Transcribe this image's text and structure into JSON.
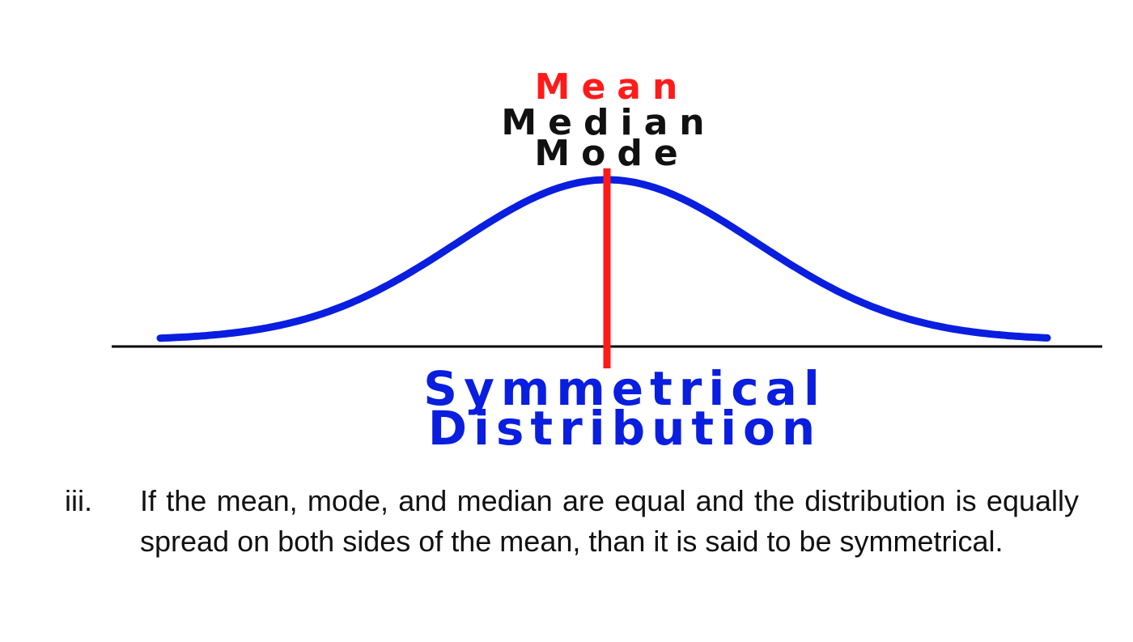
{
  "diagram": {
    "labels": {
      "mean": "Mean",
      "median": "Median",
      "mode": "Mode"
    },
    "caption_line1": "Symmetrical",
    "caption_line2": "Distribution",
    "colors": {
      "curve": "#0a1ee0",
      "center_line": "#ff1a1a",
      "baseline": "#000000",
      "mean_label": "#ff1a1a",
      "median_label": "#111111",
      "caption": "#0a1ee0"
    }
  },
  "note": {
    "number": "iii.",
    "text": "If the mean, mode, and median are equal and the distribution is equally spread on both sides of the mean, than it is said to be symmetrical."
  }
}
